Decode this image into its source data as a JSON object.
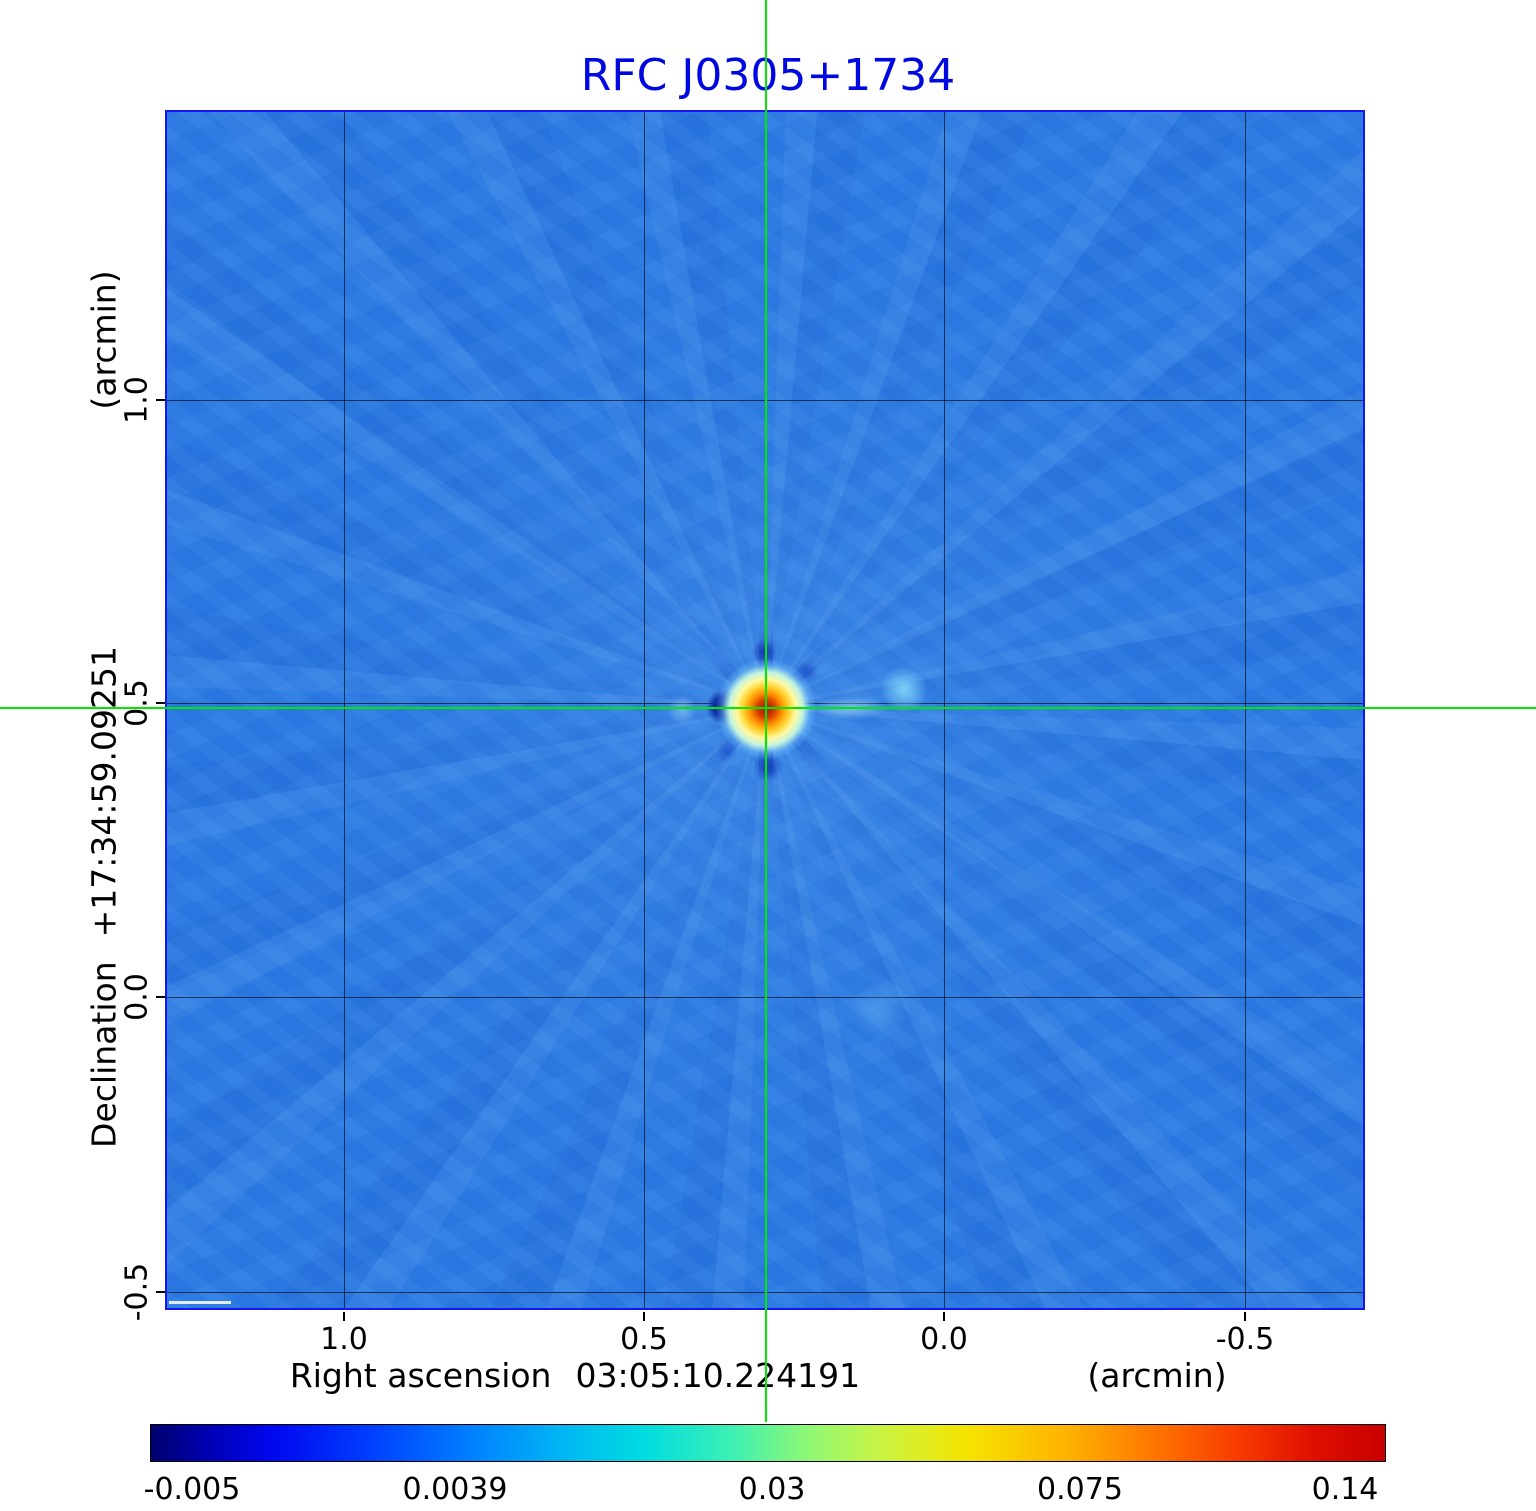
{
  "title": "RFC J0305+1734",
  "colors": {
    "title": "#0008e0",
    "frame": "#1616f0",
    "crosshair": "#00e800",
    "map_background": "#2b7ce4",
    "grid": "#000000"
  },
  "x_axis": {
    "label": "Right ascension",
    "coordinate": "03:05:10.224191",
    "unit": "(arcmin)",
    "ticks": [
      "1.0",
      "0.5",
      "0.0",
      "-0.5"
    ]
  },
  "y_axis": {
    "label": "Declination",
    "coordinate": "+17:34:59.09251",
    "unit": "(arcmin)",
    "ticks": [
      "1.0",
      "0.5",
      "0.0",
      "-0.5"
    ]
  },
  "colorbar": {
    "labels": [
      "-0.005",
      "0.0039",
      "0.03",
      "0.075",
      "0.14"
    ]
  },
  "chart_data": {
    "type": "heatmap",
    "title": "RFC J0305+1734",
    "xlabel": "Right ascension 03:05:10.224191 (arcmin)",
    "ylabel": "Declination +17:34:59.09251 (arcmin)",
    "xlim": [
      1.35,
      -0.7
    ],
    "ylim": [
      -0.55,
      1.45
    ],
    "x_ticks": [
      1.0,
      0.5,
      0.0,
      -0.5
    ],
    "y_ticks": [
      1.0,
      0.5,
      0.0,
      -0.5
    ],
    "grid": true,
    "legend_position": "bottom-colorbar",
    "colormap": "jet",
    "colorbar_ticks": [
      -0.005,
      0.0039,
      0.03,
      0.075,
      0.14
    ],
    "intensity_range": [
      -0.005,
      0.14
    ],
    "background_level": 0.004,
    "peak_source": {
      "x_arcmin": 0.3,
      "y_arcmin": 0.49,
      "value": 0.14
    },
    "crosshair_position": {
      "x_arcmin": 0.3,
      "y_arcmin": 0.49
    },
    "features": [
      {
        "type": "point_source_peak",
        "x_arcmin": 0.3,
        "y_arcmin": 0.49,
        "value": 0.14
      },
      {
        "type": "negative_sidelobe",
        "x_arcmin": 0.37,
        "y_arcmin": 0.49,
        "value": -0.005
      },
      {
        "type": "positive_sidelobe",
        "x_arcmin": 0.07,
        "y_arcmin": 0.52,
        "value": 0.02
      },
      {
        "type": "radial_sidelobe_spokes",
        "centered_on": "peak_source"
      }
    ]
  }
}
